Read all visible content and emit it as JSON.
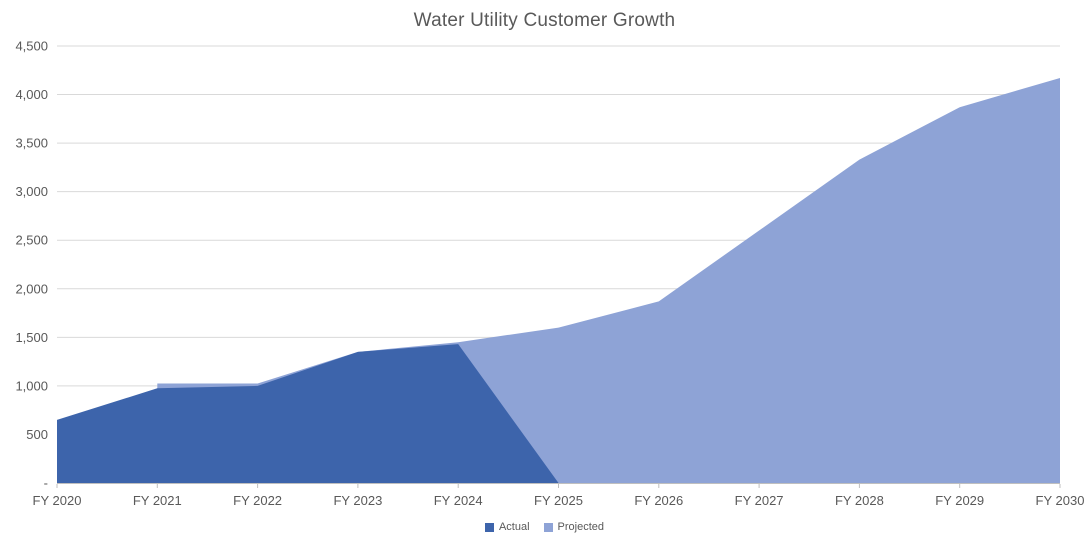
{
  "chart_data": {
    "type": "area",
    "title": "Water Utility Customer Growth",
    "categories": [
      "FY 2020",
      "FY 2021",
      "FY 2022",
      "FY 2023",
      "FY 2024",
      "FY 2025",
      "FY 2026",
      "FY 2027",
      "FY 2028",
      "FY 2029",
      "FY 2030"
    ],
    "series": [
      {
        "name": "Actual",
        "color": "#3D64AB",
        "values": [
          650,
          975,
          1000,
          1350,
          1430,
          0,
          null,
          null,
          null,
          null,
          null
        ]
      },
      {
        "name": "Projected",
        "color": "#8EA3D6",
        "values": [
          null,
          1025,
          1025,
          1350,
          1450,
          1600,
          1870,
          2600,
          3330,
          3870,
          4170
        ]
      }
    ],
    "ylim": [
      0,
      4500
    ],
    "ytick_step": 500,
    "ytick_labels": [
      "-",
      "500",
      "1,000",
      "1,500",
      "2,000",
      "2,500",
      "3,000",
      "3,500",
      "4,000",
      "4,500"
    ],
    "grid": true,
    "gridline_color": "#D9D9D9",
    "axis_color": "#BFBFBF",
    "label_color": "#595959",
    "legend_position": "bottom"
  }
}
